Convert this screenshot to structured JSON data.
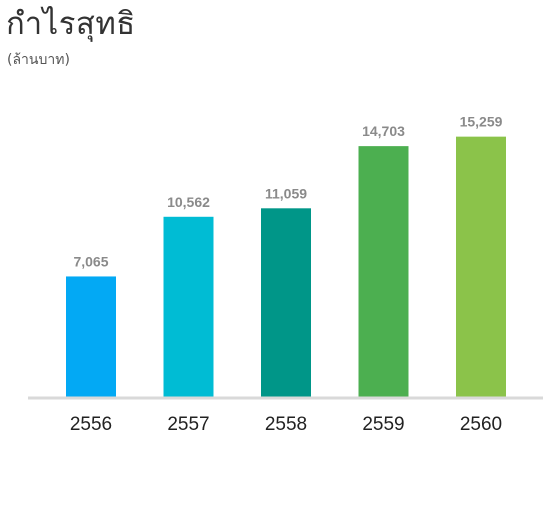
{
  "chart_data": {
    "type": "bar",
    "title": "กำไรสุทธิ",
    "subtitle": "(ล้านบาท)",
    "categories": [
      "2556",
      "2557",
      "2558",
      "2559",
      "2560"
    ],
    "values": [
      7065,
      10562,
      11059,
      14703,
      15259
    ],
    "value_labels": [
      "7,065",
      "10,562",
      "11,059",
      "14,703",
      "15,259"
    ],
    "bar_colors": [
      "#03a9f4",
      "#00bcd4",
      "#009688",
      "#4caf50",
      "#8bc34a"
    ],
    "baseline_color": "#d9d9d9",
    "label_color": "#8a8a8a",
    "category_label_color": "#222222",
    "ylim": [
      0,
      16000
    ],
    "grid": false,
    "legend": "none",
    "xlabel": "",
    "ylabel": ""
  }
}
